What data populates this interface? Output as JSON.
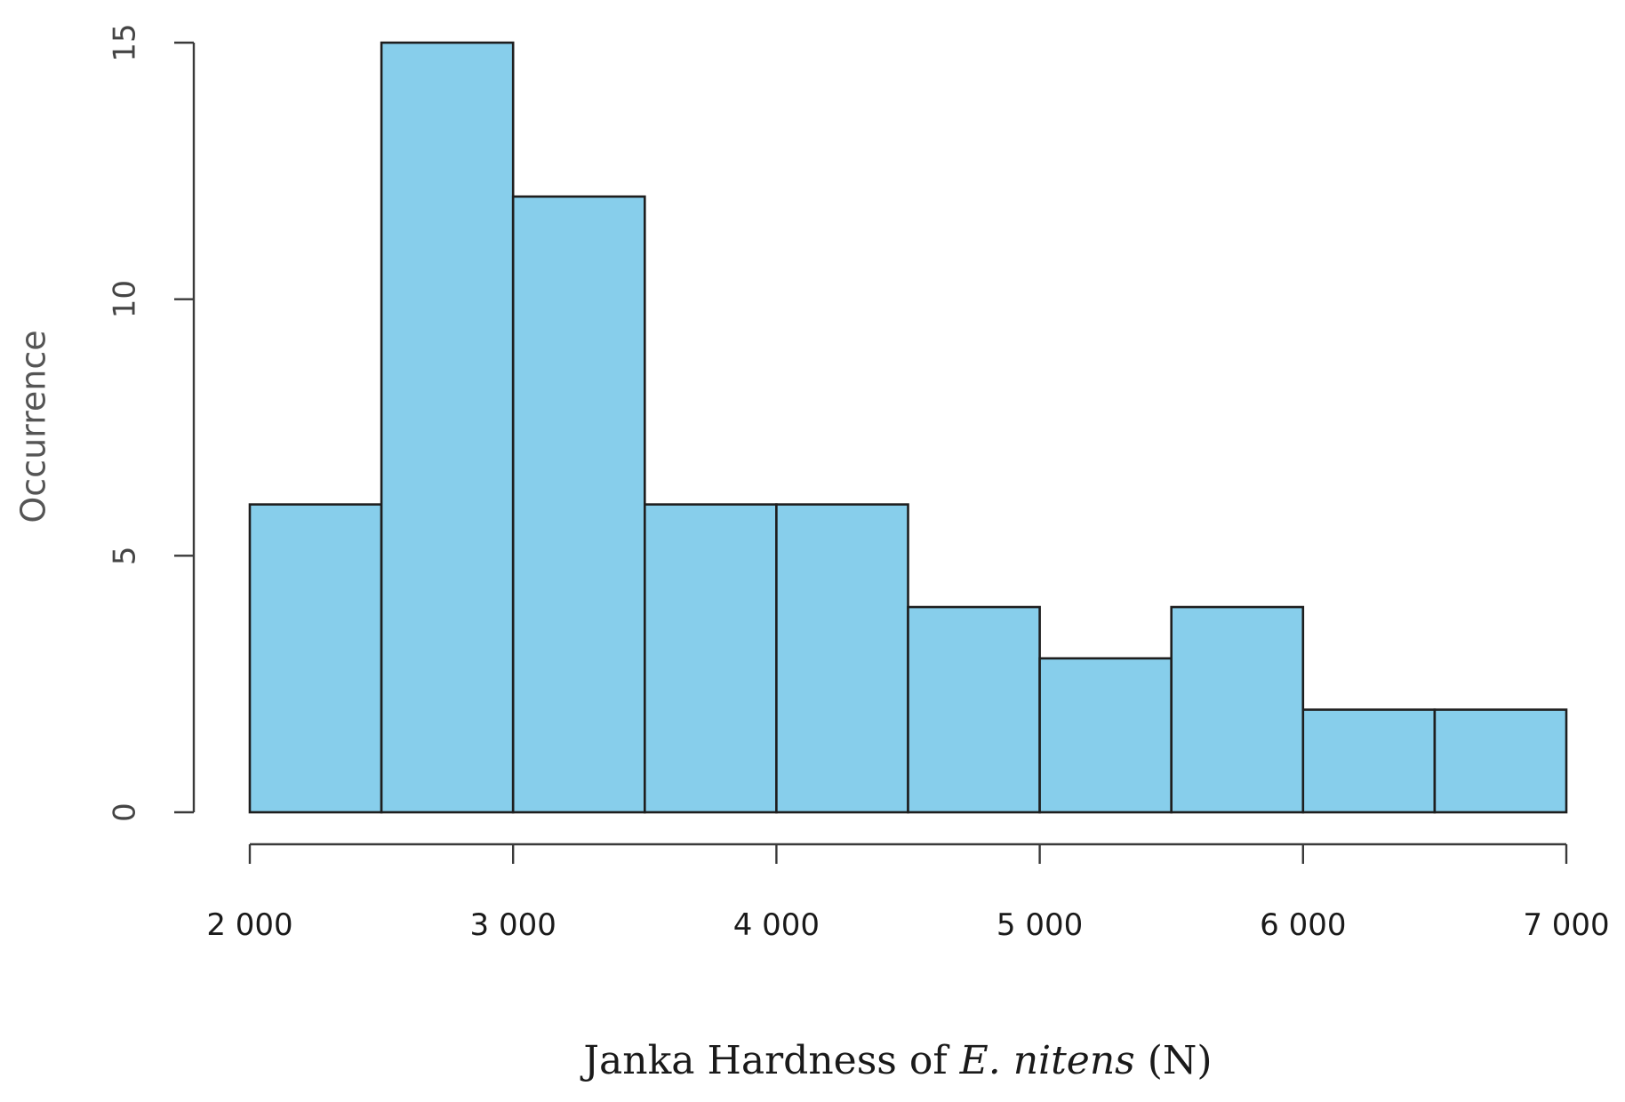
{
  "chart_data": {
    "type": "bar",
    "subtype": "histogram",
    "bins": [
      {
        "start": 2000,
        "end": 2500,
        "count": 6
      },
      {
        "start": 2500,
        "end": 3000,
        "count": 15
      },
      {
        "start": 3000,
        "end": 3500,
        "count": 12
      },
      {
        "start": 3500,
        "end": 4000,
        "count": 6
      },
      {
        "start": 4000,
        "end": 4500,
        "count": 6
      },
      {
        "start": 4500,
        "end": 5000,
        "count": 4
      },
      {
        "start": 5000,
        "end": 5500,
        "count": 3
      },
      {
        "start": 5500,
        "end": 6000,
        "count": 4
      },
      {
        "start": 6000,
        "end": 6500,
        "count": 2
      },
      {
        "start": 6500,
        "end": 7000,
        "count": 2
      }
    ],
    "xlabel": {
      "prefix": "Janka Hardness of ",
      "italic": "E. nitens",
      "suffix": " (N)"
    },
    "ylabel": "Occurrence",
    "xlim": [
      2000,
      7000
    ],
    "ylim": [
      0,
      15
    ],
    "xticks": [
      {
        "value": 2000,
        "label": "2 000"
      },
      {
        "value": 3000,
        "label": "3 000"
      },
      {
        "value": 4000,
        "label": "4 000"
      },
      {
        "value": 5000,
        "label": "5 000"
      },
      {
        "value": 6000,
        "label": "6 000"
      },
      {
        "value": 7000,
        "label": "7 000"
      }
    ],
    "yticks": [
      {
        "value": 0,
        "label": "0"
      },
      {
        "value": 5,
        "label": "5"
      },
      {
        "value": 10,
        "label": "10"
      },
      {
        "value": 15,
        "label": "15"
      }
    ],
    "grid": false,
    "legend": "none",
    "bar_color": "#87ceeb",
    "edge_color": "#1e1e1e"
  }
}
